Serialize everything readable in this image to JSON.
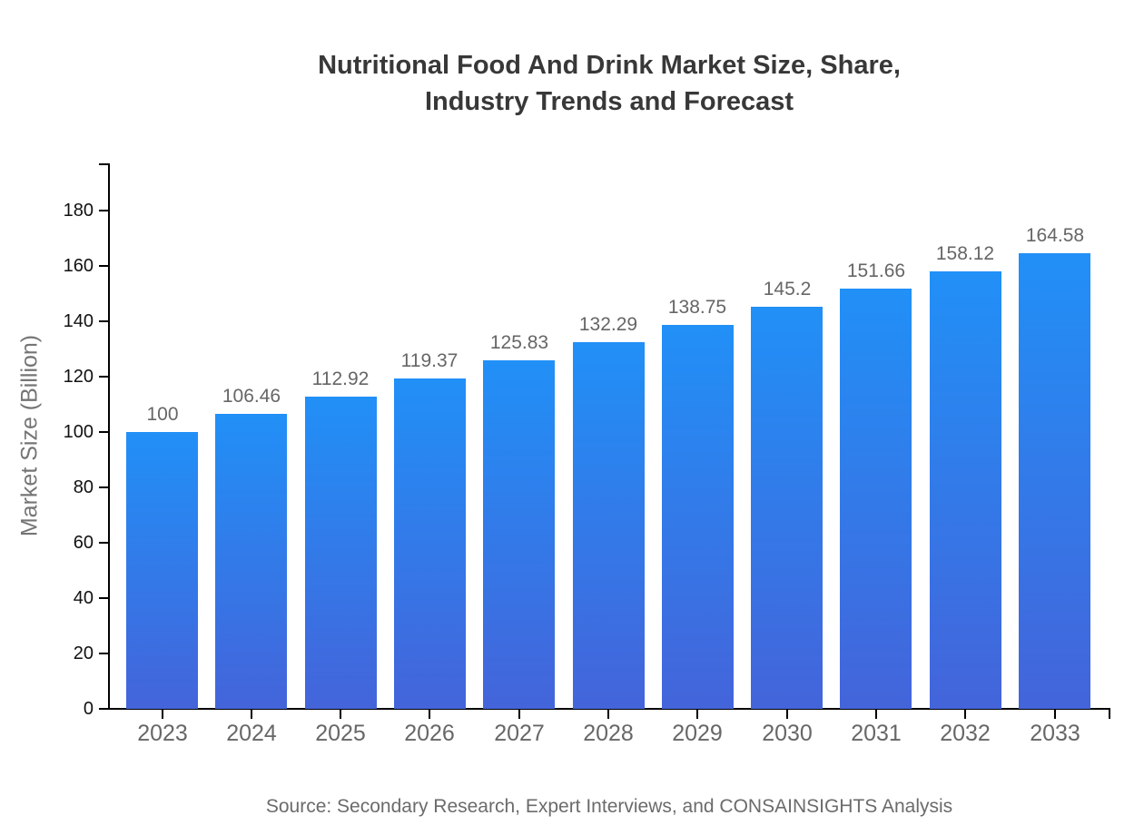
{
  "title_lines": [
    "Nutritional Food And Drink Market Size, Share,",
    "Industry Trends and Forecast"
  ],
  "chart_data": {
    "type": "bar",
    "title": "Nutritional Food And Drink Market Size, Share, Industry Trends and Forecast",
    "categories": [
      "2023",
      "2024",
      "2025",
      "2026",
      "2027",
      "2028",
      "2029",
      "2030",
      "2031",
      "2032",
      "2033"
    ],
    "values": [
      100,
      106.46,
      112.92,
      119.37,
      125.83,
      132.29,
      138.75,
      145.2,
      151.66,
      158.12,
      164.58
    ],
    "value_labels": [
      "100",
      "106.46",
      "112.92",
      "119.37",
      "125.83",
      "132.29",
      "138.75",
      "145.2",
      "151.66",
      "158.12",
      "164.58"
    ],
    "xlabel": "",
    "ylabel": "Market Size (Billion)",
    "ylim": [
      0,
      196.7
    ],
    "yticks": [
      0,
      20,
      40,
      60,
      80,
      100,
      120,
      140,
      160,
      180
    ],
    "grid": false,
    "legend": false,
    "bar_color_top": "#2190f7",
    "bar_color_bottom": "#4464da"
  },
  "source_note": "Source: Secondary Research, Expert Interviews, and CONSAINSIGHTS Analysis",
  "colors": {
    "title_text": "#383838",
    "axis": "#000000",
    "y_tick_label": "#111111",
    "x_tick_label": "#676767",
    "value_label": "#666666",
    "y_axis_title": "#757575",
    "source_text": "#6b6b6b"
  }
}
